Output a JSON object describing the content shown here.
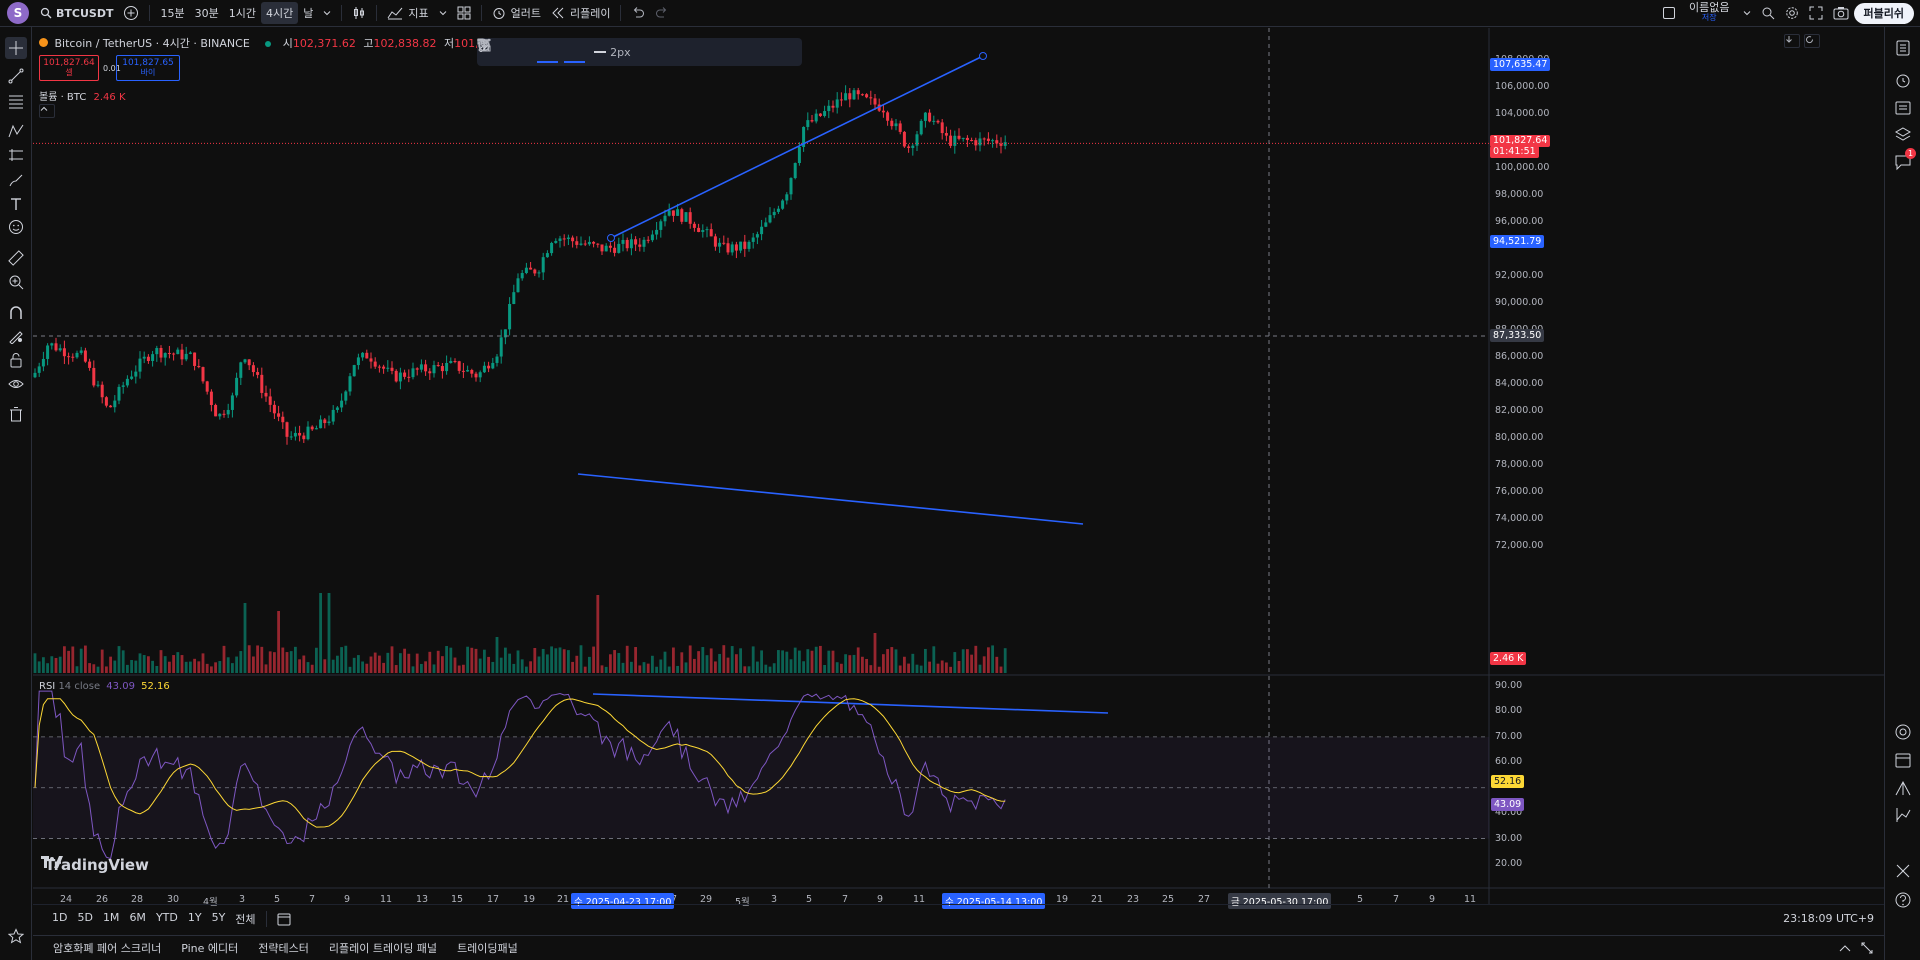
{
  "topbar": {
    "avatar_letter": "S",
    "symbol": "BTCUSDT",
    "intervals": [
      "15분",
      "30분",
      "1시간",
      "4시간",
      "날"
    ],
    "active_interval": "4시간",
    "indicators_label": "지표",
    "alert_label": "얼러트",
    "replay_label": "리플레이",
    "layout_name": "이름없음",
    "layout_sub": "저장",
    "publish_label": "퍼블리쉬"
  },
  "legend": {
    "title": "Bitcoin / TetherUS · 4시간 · BINANCE",
    "open_label": "시",
    "open": "102,371.62",
    "high_label": "고",
    "high": "102,838.82",
    "low_label": "저",
    "low": "101,569.84",
    "sell_price": "101,827.64",
    "sell_label": "셀",
    "spread": "0.01",
    "buy_price": "101,827.65",
    "buy_label": "바이",
    "volume_label": "볼륨 · BTC",
    "volume_value": "2.46 K",
    "rsi_label": "RSI",
    "rsi_params": "14 close",
    "rsi_value": "43.09",
    "rsi_ma_value": "52.16"
  },
  "drawing_toolbar": {
    "width_label": "2px"
  },
  "price_axis": {
    "labels": [
      "108,000.00",
      "106,000.00",
      "104,000.00",
      "100,000.00",
      "98,000.00",
      "96,000.00",
      "92,000.00",
      "90,000.00",
      "88,000.00",
      "86,000.00",
      "84,000.00",
      "82,000.00",
      "80,000.00",
      "78,000.00",
      "76,000.00",
      "74,000.00",
      "72,000.00"
    ],
    "tag_top": "107,635.47",
    "tag_last_price": "101,827.64",
    "tag_countdown": "01:41:51",
    "tag_low": "94,521.79",
    "tag_crosshair": "87,333.50",
    "tag_volume": "2.46 K"
  },
  "rsi_axis": {
    "labels": [
      "90.00",
      "80.00",
      "70.00",
      "60.00",
      "40.00",
      "30.00",
      "20.00"
    ],
    "tag_ma": "52.16",
    "tag_rsi": "43.09"
  },
  "time_axis": {
    "labels": [
      "24",
      "26",
      "28",
      "30",
      "4월",
      "3",
      "5",
      "7",
      "9",
      "11",
      "13",
      "15",
      "17",
      "19",
      "21",
      "27",
      "29",
      "5월",
      "3",
      "5",
      "7",
      "9",
      "11",
      "17",
      "19",
      "21",
      "23",
      "25",
      "27",
      "3",
      "5",
      "7",
      "9",
      "11"
    ],
    "tag_start": "수 2025-04-23   17:00",
    "tag_end": "수 2025-05-14   13:00",
    "tag_cross": "금 2025-05-30   17:00"
  },
  "range_bar": {
    "ranges": [
      "1D",
      "5D",
      "1M",
      "6M",
      "YTD",
      "1Y",
      "5Y",
      "전체"
    ],
    "clock": "23:18:09 UTC+9"
  },
  "bottom_panel": {
    "tabs": [
      "암호화폐 페어 스크리너",
      "Pine 에디터",
      "전략테스터",
      "리플레이 트레이딩 패널",
      "트레이딩패널"
    ]
  },
  "watermark": "TradingView",
  "alerts_badge": "1",
  "colors": {
    "up": "#089981",
    "down": "#f23645",
    "trendline": "#2962ff",
    "rsi_line": "#7e57c2",
    "rsi_ma": "#fdd835",
    "background": "#0f0f0f"
  }
}
